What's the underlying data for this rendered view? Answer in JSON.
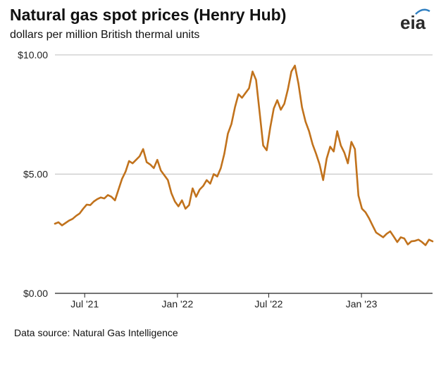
{
  "header": {
    "title": "Natural gas spot prices (Henry Hub)",
    "subtitle": "dollars per million British thermal units",
    "logo_text": "eia"
  },
  "footer": {
    "source": "Data source: Natural Gas Intelligence"
  },
  "colors": {
    "line": "#c1721c",
    "grid": "#bdbdbd",
    "axis": "#222222",
    "logo_arc": "#2f7fc1"
  },
  "chart_data": {
    "type": "line",
    "title": "Natural gas spot prices (Henry Hub)",
    "subtitle": "dollars per million British thermal units",
    "xlabel": "",
    "ylabel": "",
    "xlim": [
      "2021-05-03",
      "2023-05-22"
    ],
    "ylim": [
      0,
      10
    ],
    "grid": "horizontal",
    "legend": "none",
    "y_ticks": [
      {
        "value": 0,
        "label": "$0.00"
      },
      {
        "value": 5,
        "label": "$5.00"
      },
      {
        "value": 10,
        "label": "$10.00"
      }
    ],
    "x_ticks": [
      {
        "value": "2021-07-01",
        "label": "Jul '21"
      },
      {
        "value": "2022-01-01",
        "label": "Jan '22"
      },
      {
        "value": "2022-07-01",
        "label": "Jul '22"
      },
      {
        "value": "2023-01-01",
        "label": "Jan '23"
      }
    ],
    "series": [
      {
        "x": [
          "2021-05-03",
          "2021-05-10",
          "2021-05-17",
          "2021-05-24",
          "2021-05-31",
          "2021-06-07",
          "2021-06-14",
          "2021-06-21",
          "2021-06-28",
          "2021-07-05",
          "2021-07-12",
          "2021-07-19",
          "2021-07-26",
          "2021-08-02",
          "2021-08-09",
          "2021-08-16",
          "2021-08-23",
          "2021-08-30",
          "2021-09-06",
          "2021-09-13",
          "2021-09-20",
          "2021-09-27",
          "2021-10-04",
          "2021-10-11",
          "2021-10-18",
          "2021-10-25",
          "2021-11-01",
          "2021-11-08",
          "2021-11-15",
          "2021-11-22",
          "2021-11-29",
          "2021-12-06",
          "2021-12-13",
          "2021-12-20",
          "2021-12-27",
          "2022-01-03",
          "2022-01-10",
          "2022-01-17",
          "2022-01-24",
          "2022-01-31",
          "2022-02-07",
          "2022-02-14",
          "2022-02-21",
          "2022-02-28",
          "2022-03-07",
          "2022-03-14",
          "2022-03-21",
          "2022-03-28",
          "2022-04-04",
          "2022-04-11",
          "2022-04-18",
          "2022-04-25",
          "2022-05-02",
          "2022-05-09",
          "2022-05-16",
          "2022-05-23",
          "2022-05-30",
          "2022-06-06",
          "2022-06-13",
          "2022-06-20",
          "2022-06-27",
          "2022-07-04",
          "2022-07-11",
          "2022-07-18",
          "2022-07-25",
          "2022-08-01",
          "2022-08-08",
          "2022-08-15",
          "2022-08-22",
          "2022-08-29",
          "2022-09-05",
          "2022-09-12",
          "2022-09-19",
          "2022-09-26",
          "2022-10-03",
          "2022-10-10",
          "2022-10-17",
          "2022-10-24",
          "2022-10-31",
          "2022-11-07",
          "2022-11-14",
          "2022-11-21",
          "2022-11-28",
          "2022-12-05",
          "2022-12-12",
          "2022-12-19",
          "2022-12-26",
          "2023-01-02",
          "2023-01-09",
          "2023-01-16",
          "2023-01-23",
          "2023-01-30",
          "2023-02-06",
          "2023-02-13",
          "2023-02-20",
          "2023-02-27",
          "2023-03-06",
          "2023-03-13",
          "2023-03-20",
          "2023-03-27",
          "2023-04-03",
          "2023-04-10",
          "2023-04-17",
          "2023-04-24",
          "2023-05-01",
          "2023-05-08",
          "2023-05-15",
          "2023-05-22"
        ],
        "y": [
          2.92,
          2.98,
          2.85,
          2.95,
          3.05,
          3.12,
          3.25,
          3.35,
          3.55,
          3.72,
          3.7,
          3.85,
          3.95,
          4.02,
          3.98,
          4.12,
          4.05,
          3.9,
          4.35,
          4.8,
          5.1,
          5.55,
          5.45,
          5.6,
          5.75,
          6.05,
          5.5,
          5.4,
          5.25,
          5.6,
          5.15,
          4.95,
          4.75,
          4.2,
          3.85,
          3.65,
          3.9,
          3.55,
          3.7,
          4.4,
          4.05,
          4.35,
          4.5,
          4.75,
          4.6,
          5.0,
          4.9,
          5.25,
          5.85,
          6.7,
          7.1,
          7.8,
          8.35,
          8.2,
          8.4,
          8.6,
          9.3,
          8.95,
          7.6,
          6.2,
          6.0,
          6.95,
          7.75,
          8.1,
          7.7,
          7.95,
          8.55,
          9.3,
          9.55,
          8.8,
          7.8,
          7.2,
          6.8,
          6.25,
          5.85,
          5.4,
          4.75,
          5.65,
          6.15,
          5.95,
          6.8,
          6.2,
          5.9,
          5.45,
          6.35,
          6.05,
          4.1,
          3.55,
          3.4,
          3.15,
          2.85,
          2.55,
          2.45,
          2.35,
          2.5,
          2.6,
          2.38,
          2.15,
          2.35,
          2.3,
          2.05,
          2.18,
          2.2,
          2.25,
          2.15,
          2.02,
          2.25,
          2.18
        ]
      }
    ]
  }
}
